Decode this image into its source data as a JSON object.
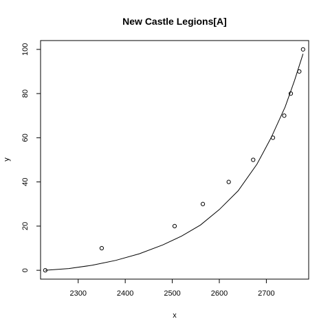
{
  "chart_data": {
    "type": "scatter",
    "title": "New Castle Legions[A]",
    "xlabel": "x",
    "ylabel": "y",
    "xlim": [
      2220,
      2790
    ],
    "ylim": [
      -4,
      104
    ],
    "xticks": [
      2300,
      2400,
      2500,
      2600,
      2700
    ],
    "yticks": [
      0,
      20,
      40,
      60,
      80,
      100
    ],
    "grid": false,
    "legend": "none",
    "points": {
      "x": [
        2230,
        2350,
        2505,
        2565,
        2620,
        2672,
        2714,
        2738,
        2752,
        2770,
        2778
      ],
      "y": [
        0,
        10,
        20,
        30,
        40,
        50,
        60,
        70,
        80,
        90,
        100
      ]
    },
    "fitted_curve": {
      "x": [
        2230,
        2280,
        2330,
        2380,
        2430,
        2480,
        2520,
        2560,
        2600,
        2640,
        2680,
        2710,
        2740,
        2760,
        2778
      ],
      "y": [
        0,
        0.8,
        2.3,
        4.5,
        7.5,
        11.5,
        15.5,
        20.5,
        27.5,
        36,
        48,
        60,
        74,
        86,
        98
      ]
    },
    "colors": {
      "points": "#000000",
      "curve": "#000000",
      "axes": "#000000"
    }
  }
}
